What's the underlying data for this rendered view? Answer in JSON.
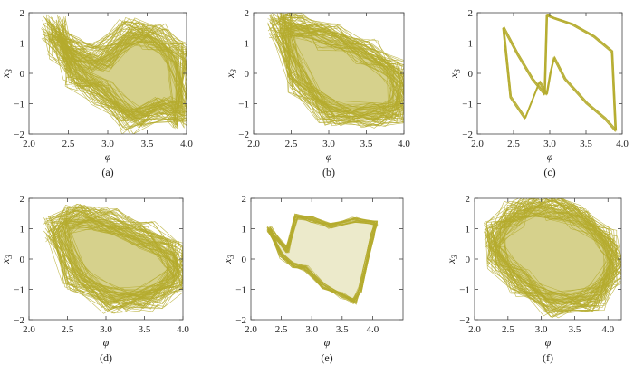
{
  "figure": {
    "type": "phase-portrait-grid",
    "series_color": "#b5ac2e",
    "panels_label": [
      "(a)",
      "(b)",
      "(c)",
      "(d)",
      "(e)",
      "(f)"
    ]
  },
  "chart_data": [
    {
      "type": "line",
      "label": "(a)",
      "xlabel": "φ",
      "ylabel": "x",
      "ylabel_sub": "3",
      "xlim": [
        2.0,
        4.0
      ],
      "ylim": [
        -2,
        2
      ],
      "xticks": [
        "2.0",
        "2.5",
        "3.0",
        "3.5",
        "4.0"
      ],
      "yticks": [
        "2",
        "1",
        "0",
        "−1",
        "−2"
      ],
      "style": "dense-chaotic",
      "x_range": [
        2.3,
        4.0
      ],
      "y_range": [
        -1.8,
        1.6
      ],
      "series": [
        {
          "x": [
            2.32,
            2.5,
            2.9,
            3.3,
            3.6,
            3.9,
            3.98,
            3.7,
            3.3,
            2.9,
            2.6,
            2.4,
            2.32
          ],
          "y": [
            1.5,
            0.8,
            0.5,
            1.4,
            1.2,
            0.6,
            -1.4,
            -1.2,
            -1.6,
            -0.6,
            -0.1,
            0.9,
            1.5
          ]
        }
      ]
    },
    {
      "type": "line",
      "label": "(b)",
      "xlabel": "φ",
      "ylabel": "x",
      "ylabel_sub": "3",
      "xlim": [
        2.0,
        4.0
      ],
      "ylim": [
        -2,
        2
      ],
      "xticks": [
        "2.0",
        "2.5",
        "3.0",
        "3.5",
        "4.0"
      ],
      "yticks": [
        "2",
        "1",
        "0",
        "−1",
        "−2"
      ],
      "style": "dense-chaotic",
      "x_range": [
        2.3,
        4.0
      ],
      "y_range": [
        -1.5,
        1.7
      ],
      "series": [
        {
          "x": [
            2.35,
            2.5,
            3.0,
            3.5,
            3.9,
            3.95,
            3.6,
            3.0,
            2.6,
            2.35
          ],
          "y": [
            1.6,
            1.6,
            1.2,
            0.7,
            0.0,
            -1.2,
            -1.4,
            -1.3,
            -0.3,
            1.6
          ],
          "note": ""
        }
      ]
    },
    {
      "type": "line",
      "label": "(c)",
      "xlabel": "φ",
      "ylabel": "x",
      "ylabel_sub": "3",
      "xlim": [
        2.0,
        4.0
      ],
      "ylim": [
        -2,
        2
      ],
      "xticks": [
        "2.0",
        "2.5",
        "3.0",
        "3.5",
        "4.0"
      ],
      "yticks": [
        "2",
        "1",
        "0",
        "−1",
        "−2"
      ],
      "style": "periodic-loop",
      "series": [
        {
          "x": [
            2.35,
            2.55,
            2.75,
            2.92,
            2.95,
            3.05,
            3.3,
            3.6,
            3.85,
            3.9,
            3.75,
            3.5,
            3.2,
            3.05,
            3.0,
            2.95,
            2.85,
            2.65,
            2.45,
            2.35
          ],
          "y": [
            1.5,
            0.6,
            -0.2,
            -0.7,
            1.9,
            1.8,
            1.6,
            1.2,
            0.7,
            -1.9,
            -1.5,
            -1.0,
            -0.2,
            0.5,
            0.0,
            -0.7,
            -0.3,
            -1.5,
            -0.8,
            1.5
          ]
        }
      ]
    },
    {
      "type": "line",
      "label": "(d)",
      "xlabel": "φ",
      "ylabel": "x",
      "ylabel_sub": "3",
      "xlim": [
        2.0,
        4.0
      ],
      "ylim": [
        -2,
        2
      ],
      "xticks": [
        "2.0",
        "2.5",
        "3.0",
        "3.5",
        "4.0"
      ],
      "yticks": [
        "2",
        "1",
        "0",
        "−1",
        "−2"
      ],
      "style": "dense-chaotic",
      "x_range": [
        2.3,
        4.0
      ],
      "y_range": [
        -1.5,
        1.5
      ],
      "series": [
        {
          "x": [
            2.35,
            2.6,
            3.0,
            3.5,
            3.9,
            3.95,
            3.6,
            3.1,
            2.6,
            2.35
          ],
          "y": [
            1.0,
            1.4,
            1.3,
            0.8,
            0.2,
            -0.6,
            -1.3,
            -1.4,
            -0.6,
            1.0
          ]
        }
      ]
    },
    {
      "type": "line",
      "label": "(e)",
      "xlabel": "φ",
      "ylabel": "x",
      "ylabel_sub": "3",
      "xlim": [
        2.0,
        4.5
      ],
      "ylim": [
        -2,
        2
      ],
      "xticks": [
        "2.0",
        "2.5",
        "3.0",
        "3.5",
        "4.0"
      ],
      "yticks": [
        "2",
        "1",
        "0",
        "−1",
        "−2"
      ],
      "style": "banded-loop",
      "series": [
        {
          "x": [
            2.3,
            2.6,
            2.75,
            3.0,
            3.3,
            3.7,
            4.05,
            4.0,
            3.8,
            3.7,
            3.5,
            3.2,
            2.9,
            2.7,
            2.5,
            2.3
          ],
          "y": [
            1.0,
            0.3,
            1.4,
            1.3,
            1.1,
            1.3,
            1.2,
            0.8,
            -1.0,
            -1.4,
            -1.2,
            -0.9,
            -0.3,
            -0.2,
            0.1,
            1.0
          ]
        }
      ]
    },
    {
      "type": "line",
      "label": "(f)",
      "xlabel": "φ",
      "ylabel": "x",
      "ylabel_sub": "3",
      "xlim": [
        2.0,
        4.2
      ],
      "ylim": [
        -2,
        2
      ],
      "xticks": [
        "2.0",
        "2.5",
        "3.0",
        "3.5",
        "4.0"
      ],
      "yticks": [
        "2",
        "1",
        "0",
        "−1",
        "−2"
      ],
      "style": "dense-chaotic",
      "x_range": [
        2.3,
        4.1
      ],
      "y_range": [
        -1.5,
        1.8
      ],
      "series": [
        {
          "x": [
            2.3,
            2.6,
            2.9,
            3.2,
            3.6,
            4.0,
            4.1,
            3.8,
            3.2,
            2.7,
            2.35,
            2.3
          ],
          "y": [
            0.8,
            1.5,
            1.8,
            1.7,
            1.4,
            0.6,
            -0.4,
            -1.3,
            -1.5,
            -0.8,
            0.0,
            0.8
          ]
        }
      ]
    }
  ]
}
